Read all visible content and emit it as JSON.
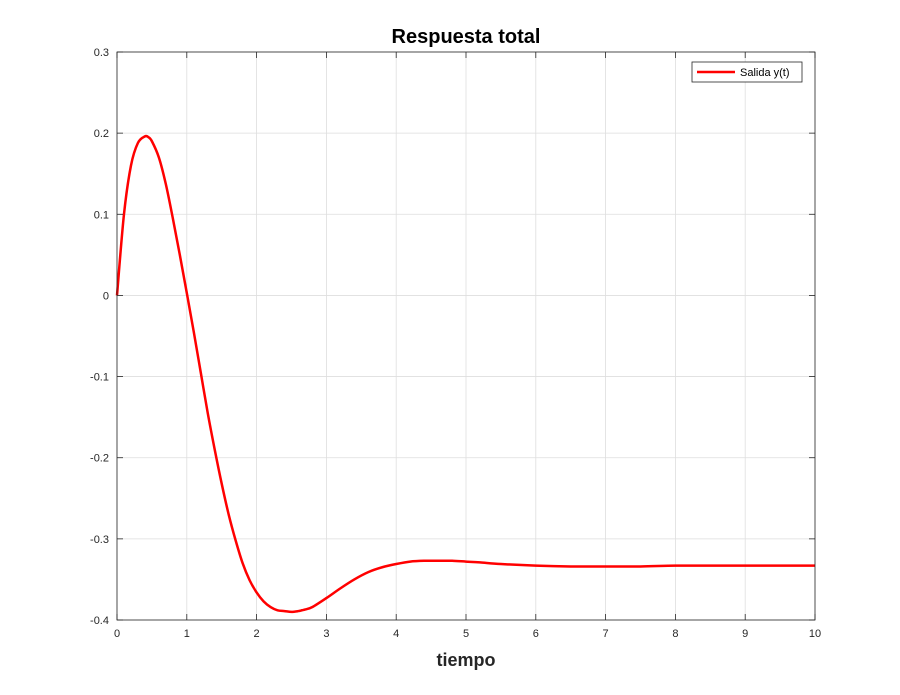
{
  "chart_data": {
    "type": "line",
    "title": "Respuesta total",
    "xlabel": "tiempo",
    "ylabel": "",
    "xlim": [
      0,
      10
    ],
    "ylim": [
      -0.4,
      0.3
    ],
    "x_ticks": [
      "0",
      "1",
      "2",
      "3",
      "4",
      "5",
      "6",
      "7",
      "8",
      "9",
      "10"
    ],
    "y_ticks": [
      "-0.4",
      "-0.3",
      "-0.2",
      "-0.1",
      "0",
      "0.1",
      "0.2",
      "0.3"
    ],
    "grid": true,
    "legend_position": "top-right",
    "series": [
      {
        "name": "Salida y(t)",
        "color": "#ff0000",
        "x": [
          0,
          0.1,
          0.2,
          0.3,
          0.4,
          0.45,
          0.5,
          0.6,
          0.7,
          0.8,
          0.9,
          1.0,
          1.1,
          1.2,
          1.3,
          1.4,
          1.5,
          1.6,
          1.7,
          1.8,
          1.9,
          2.0,
          2.1,
          2.2,
          2.3,
          2.4,
          2.5,
          2.6,
          2.65,
          2.7,
          2.8,
          3.0,
          3.2,
          3.4,
          3.6,
          3.8,
          4.0,
          4.2,
          4.4,
          4.6,
          4.8,
          5.0,
          5.2,
          5.5,
          6.0,
          6.5,
          7.0,
          7.5,
          8.0,
          8.5,
          9.0,
          9.5,
          10.0
        ],
        "y": [
          0,
          0.1,
          0.16,
          0.188,
          0.196,
          0.195,
          0.19,
          0.17,
          0.137,
          0.095,
          0.05,
          0.003,
          -0.045,
          -0.095,
          -0.145,
          -0.19,
          -0.232,
          -0.27,
          -0.302,
          -0.33,
          -0.351,
          -0.366,
          -0.377,
          -0.384,
          -0.388,
          -0.389,
          -0.39,
          -0.389,
          -0.388,
          -0.387,
          -0.384,
          -0.373,
          -0.361,
          -0.35,
          -0.341,
          -0.335,
          -0.331,
          -0.328,
          -0.327,
          -0.327,
          -0.327,
          -0.328,
          -0.329,
          -0.331,
          -0.333,
          -0.334,
          -0.334,
          -0.334,
          -0.333,
          -0.333,
          -0.333,
          -0.333,
          -0.333
        ]
      }
    ]
  }
}
